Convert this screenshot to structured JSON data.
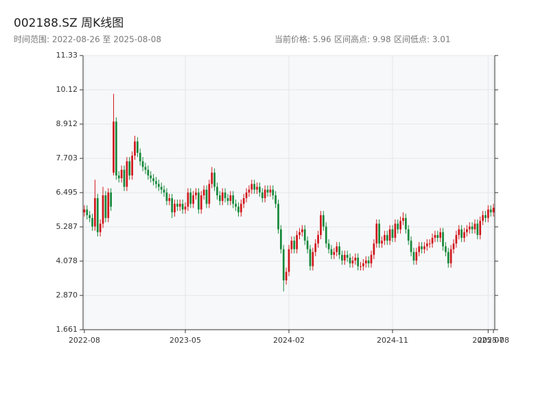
{
  "chart_data": {
    "type": "candlestick",
    "title": "002188.SZ 周K线图",
    "subtitle": "时间范围: 2022-08-26 至 2025-08-08",
    "info": [
      "当前价格: 5.96",
      "区间高点: 9.98",
      "区间低点: 3.01"
    ],
    "up_color": "#d0181c",
    "down_color": "#16893a",
    "grid": true,
    "ylim": [
      1.661,
      11.33
    ],
    "yticks": [
      1.661,
      {
        "value": 2.87,
        "label": "2.870"
      },
      4.078,
      5.287,
      6.495,
      7.703,
      8.912,
      10.12,
      11.33
    ],
    "xticks": [
      {
        "value": "2022-08-26",
        "label": "2022-08"
      },
      {
        "value": "2023-05-19",
        "label": "2023-05"
      },
      {
        "value": "2024-02-16",
        "label": "2024-02"
      },
      {
        "value": "2024-11-15",
        "label": "2024-11"
      },
      {
        "value": "2025-07-25",
        "label": "2025-07"
      },
      {
        "value": "2025-08-08",
        "label": "2025-08"
      }
    ],
    "x": [
      "2022-08-26",
      "2022-09-02",
      "2022-09-09",
      "2022-09-16",
      "2022-09-23",
      "2022-09-30",
      "2022-10-07",
      "2022-10-14",
      "2022-10-21",
      "2022-10-28",
      "2022-11-04",
      "2022-11-11",
      "2022-11-18",
      "2022-11-25",
      "2022-12-02",
      "2022-12-09",
      "2022-12-16",
      "2022-12-23",
      "2022-12-30",
      "2023-01-06",
      "2023-01-13",
      "2023-01-20",
      "2023-01-27",
      "2023-02-03",
      "2023-02-10",
      "2023-02-17",
      "2023-02-24",
      "2023-03-03",
      "2023-03-10",
      "2023-03-17",
      "2023-03-24",
      "2023-03-31",
      "2023-04-07",
      "2023-04-14",
      "2023-04-21",
      "2023-04-28",
      "2023-05-05",
      "2023-05-12",
      "2023-05-19",
      "2023-05-26",
      "2023-06-02",
      "2023-06-09",
      "2023-06-16",
      "2023-06-23",
      "2023-06-30",
      "2023-07-07",
      "2023-07-14",
      "2023-07-21",
      "2023-07-28",
      "2023-08-04",
      "2023-08-11",
      "2023-08-18",
      "2023-08-25",
      "2023-09-01",
      "2023-09-08",
      "2023-09-15",
      "2023-09-22",
      "2023-09-29",
      "2023-10-06",
      "2023-10-13",
      "2023-10-20",
      "2023-10-27",
      "2023-11-03",
      "2023-11-10",
      "2023-11-17",
      "2023-11-24",
      "2023-12-01",
      "2023-12-08",
      "2023-12-15",
      "2023-12-22",
      "2023-12-29",
      "2024-01-05",
      "2024-01-12",
      "2024-01-19",
      "2024-01-26",
      "2024-02-02",
      "2024-02-09",
      "2024-02-16",
      "2024-02-23",
      "2024-03-01",
      "2024-03-08",
      "2024-03-15",
      "2024-03-22",
      "2024-03-29",
      "2024-04-05",
      "2024-04-12",
      "2024-04-19",
      "2024-04-26",
      "2024-05-03",
      "2024-05-10",
      "2024-05-17",
      "2024-05-24",
      "2024-05-31",
      "2024-06-07",
      "2024-06-14",
      "2024-06-21",
      "2024-06-28",
      "2024-07-05",
      "2024-07-12",
      "2024-07-19",
      "2024-07-26",
      "2024-08-02",
      "2024-08-09",
      "2024-08-16",
      "2024-08-23",
      "2024-08-30",
      "2024-09-06",
      "2024-09-13",
      "2024-09-20",
      "2024-09-27",
      "2024-10-04",
      "2024-10-11",
      "2024-10-18",
      "2024-10-25",
      "2024-11-01",
      "2024-11-08",
      "2024-11-15",
      "2024-11-22",
      "2024-11-29",
      "2024-12-06",
      "2024-12-13",
      "2024-12-20",
      "2024-12-27",
      "2025-01-03",
      "2025-01-10",
      "2025-01-17",
      "2025-01-24",
      "2025-01-31",
      "2025-02-07",
      "2025-02-14",
      "2025-02-21",
      "2025-02-28",
      "2025-03-07",
      "2025-03-14",
      "2025-03-21",
      "2025-03-28",
      "2025-04-04",
      "2025-04-11",
      "2025-04-18",
      "2025-04-25",
      "2025-05-02",
      "2025-05-09",
      "2025-05-16",
      "2025-05-23",
      "2025-05-30",
      "2025-06-06",
      "2025-06-13",
      "2025-06-20",
      "2025-06-27",
      "2025-07-04",
      "2025-07-11",
      "2025-07-18",
      "2025-07-25",
      "2025-08-01",
      "2025-08-08"
    ],
    "open": [
      5.8,
      5.9,
      5.7,
      5.6,
      5.3,
      6.3,
      5.1,
      5.4,
      6.4,
      5.6,
      6.5,
      7.2,
      9.0,
      7.1,
      7.0,
      7.3,
      6.7,
      7.6,
      7.1,
      7.8,
      8.3,
      7.9,
      7.6,
      7.4,
      7.3,
      7.1,
      7.0,
      6.9,
      6.8,
      6.7,
      6.6,
      6.5,
      6.2,
      6.3,
      5.8,
      6.1,
      6.0,
      6.1,
      5.9,
      6.0,
      6.5,
      6.1,
      6.4,
      6.5,
      5.9,
      6.4,
      6.6,
      6.1,
      6.8,
      7.2,
      6.7,
      6.4,
      6.2,
      6.5,
      6.3,
      6.2,
      6.4,
      6.1,
      6.0,
      5.8,
      6.1,
      6.3,
      6.5,
      6.6,
      6.8,
      6.6,
      6.7,
      6.5,
      6.3,
      6.6,
      6.5,
      6.6,
      6.4,
      6.1,
      5.2,
      4.5,
      3.4,
      3.7,
      4.5,
      4.8,
      4.5,
      5.0,
      5.1,
      5.2,
      4.8,
      4.5,
      3.9,
      4.4,
      4.7,
      5.0,
      5.7,
      5.3,
      4.7,
      4.5,
      4.3,
      4.4,
      4.6,
      4.3,
      4.1,
      4.3,
      4.2,
      4.0,
      4.1,
      4.2,
      3.9,
      3.9,
      4.0,
      4.1,
      4.0,
      4.3,
      4.7,
      5.4,
      4.7,
      4.8,
      5.0,
      4.8,
      5.2,
      4.9,
      5.4,
      5.2,
      5.5,
      5.6,
      5.2,
      4.8,
      4.4,
      4.1,
      4.4,
      4.6,
      4.5,
      4.6,
      4.7,
      4.7,
      4.9,
      5.0,
      4.9,
      5.1,
      4.6,
      4.4,
      4.0,
      4.5,
      4.7,
      5.0,
      5.2,
      4.9,
      5.1,
      5.2,
      5.3,
      5.2,
      5.4,
      5.0,
      5.5,
      5.7,
      5.6,
      5.9,
      5.8
    ],
    "close": [
      5.9,
      5.7,
      5.6,
      5.3,
      6.3,
      5.1,
      5.4,
      6.4,
      5.6,
      6.5,
      6.0,
      9.0,
      7.1,
      7.0,
      7.3,
      6.7,
      7.6,
      7.1,
      7.8,
      8.3,
      7.9,
      7.6,
      7.4,
      7.3,
      7.1,
      7.0,
      6.9,
      6.8,
      6.7,
      6.6,
      6.5,
      6.2,
      6.3,
      5.8,
      6.1,
      6.0,
      6.1,
      5.9,
      6.0,
      6.5,
      6.1,
      6.4,
      6.5,
      5.9,
      6.4,
      6.6,
      6.1,
      6.8,
      7.2,
      6.7,
      6.4,
      6.2,
      6.5,
      6.3,
      6.2,
      6.4,
      6.1,
      6.0,
      5.8,
      6.1,
      6.3,
      6.5,
      6.6,
      6.8,
      6.6,
      6.7,
      6.5,
      6.3,
      6.6,
      6.5,
      6.6,
      6.4,
      6.1,
      5.2,
      4.5,
      3.4,
      3.7,
      4.5,
      4.8,
      4.5,
      5.0,
      5.1,
      5.2,
      4.8,
      4.5,
      3.9,
      4.4,
      4.7,
      5.0,
      5.7,
      5.3,
      4.7,
      4.5,
      4.3,
      4.4,
      4.6,
      4.3,
      4.1,
      4.3,
      4.2,
      4.0,
      4.1,
      4.2,
      3.9,
      3.9,
      4.0,
      4.1,
      4.0,
      4.3,
      4.7,
      5.4,
      4.7,
      4.8,
      5.0,
      4.8,
      5.2,
      4.9,
      5.4,
      5.2,
      5.5,
      5.6,
      5.2,
      4.8,
      4.4,
      4.1,
      4.4,
      4.6,
      4.5,
      4.6,
      4.7,
      4.7,
      4.9,
      5.0,
      4.9,
      5.1,
      4.6,
      4.4,
      4.0,
      4.5,
      4.7,
      5.0,
      5.2,
      4.9,
      5.1,
      5.2,
      5.3,
      5.2,
      5.4,
      5.0,
      5.5,
      5.7,
      5.6,
      5.9,
      5.8,
      5.96
    ],
    "high": [
      6.05,
      6.05,
      5.85,
      5.75,
      6.95,
      6.45,
      5.55,
      6.7,
      6.55,
      6.65,
      6.65,
      9.98,
      9.15,
      7.25,
      7.45,
      7.45,
      7.75,
      7.75,
      7.95,
      8.5,
      8.45,
      8.05,
      7.75,
      7.55,
      7.45,
      7.25,
      7.15,
      7.05,
      6.95,
      6.85,
      6.75,
      6.65,
      6.45,
      6.45,
      6.25,
      6.25,
      6.25,
      6.25,
      6.15,
      6.65,
      6.65,
      6.55,
      6.65,
      6.65,
      6.55,
      6.75,
      6.75,
      6.95,
      7.4,
      7.35,
      6.85,
      6.55,
      6.65,
      6.65,
      6.45,
      6.55,
      6.55,
      6.25,
      6.15,
      6.25,
      6.45,
      6.65,
      6.75,
      6.95,
      6.95,
      6.85,
      6.85,
      6.65,
      6.75,
      6.75,
      6.75,
      6.75,
      6.55,
      6.25,
      5.35,
      4.65,
      3.85,
      4.65,
      4.95,
      4.95,
      5.15,
      5.25,
      5.35,
      5.35,
      4.95,
      4.65,
      4.55,
      4.85,
      5.15,
      5.85,
      5.85,
      5.45,
      4.85,
      4.65,
      4.55,
      4.75,
      4.75,
      4.45,
      4.45,
      4.45,
      4.35,
      4.25,
      4.35,
      4.35,
      4.05,
      4.15,
      4.25,
      4.25,
      4.45,
      4.85,
      5.55,
      5.55,
      4.95,
      5.15,
      5.15,
      5.35,
      5.35,
      5.55,
      5.55,
      5.65,
      5.8,
      5.75,
      5.35,
      4.95,
      4.55,
      4.55,
      4.75,
      4.75,
      4.75,
      4.85,
      4.85,
      5.05,
      5.15,
      5.15,
      5.25,
      5.25,
      4.75,
      4.55,
      4.65,
      4.85,
      5.15,
      5.35,
      5.35,
      5.25,
      5.35,
      5.45,
      5.45,
      5.55,
      5.55,
      5.65,
      5.85,
      5.85,
      6.05,
      6.05,
      6.1
    ],
    "low": [
      5.65,
      5.55,
      5.45,
      5.15,
      5.15,
      4.95,
      4.95,
      5.25,
      5.45,
      5.45,
      5.85,
      7.1,
      6.95,
      6.85,
      6.85,
      6.55,
      6.55,
      6.95,
      6.95,
      7.65,
      7.75,
      7.45,
      7.25,
      7.15,
      6.95,
      6.85,
      6.75,
      6.65,
      6.55,
      6.45,
      6.35,
      6.05,
      6.05,
      5.6,
      5.65,
      5.85,
      5.85,
      5.75,
      5.75,
      5.85,
      5.95,
      5.95,
      6.25,
      5.75,
      5.75,
      6.25,
      5.95,
      5.95,
      6.65,
      6.55,
      6.25,
      6.05,
      6.05,
      6.15,
      6.05,
      6.05,
      5.95,
      5.85,
      5.65,
      5.65,
      5.95,
      6.15,
      6.35,
      6.45,
      6.45,
      6.45,
      6.35,
      6.15,
      6.15,
      6.35,
      6.35,
      6.25,
      5.95,
      5.05,
      4.35,
      3.01,
      3.25,
      3.55,
      4.35,
      4.35,
      4.35,
      4.85,
      4.95,
      4.65,
      4.35,
      3.75,
      3.75,
      4.25,
      4.55,
      4.85,
      5.15,
      4.55,
      4.35,
      4.15,
      4.15,
      4.25,
      4.15,
      3.95,
      3.95,
      4.05,
      3.85,
      3.85,
      3.95,
      3.75,
      3.75,
      3.75,
      3.85,
      3.85,
      3.85,
      4.15,
      4.55,
      4.55,
      4.55,
      4.65,
      4.65,
      4.65,
      4.75,
      4.75,
      5.05,
      5.05,
      5.35,
      5.05,
      4.65,
      4.25,
      3.95,
      3.95,
      4.25,
      4.35,
      4.35,
      4.45,
      4.55,
      4.55,
      4.75,
      4.75,
      4.75,
      4.45,
      4.25,
      3.85,
      3.85,
      4.35,
      4.55,
      4.85,
      4.75,
      4.75,
      4.95,
      5.05,
      5.05,
      5.05,
      4.85,
      4.85,
      5.35,
      5.45,
      5.45,
      5.65,
      5.65
    ]
  }
}
